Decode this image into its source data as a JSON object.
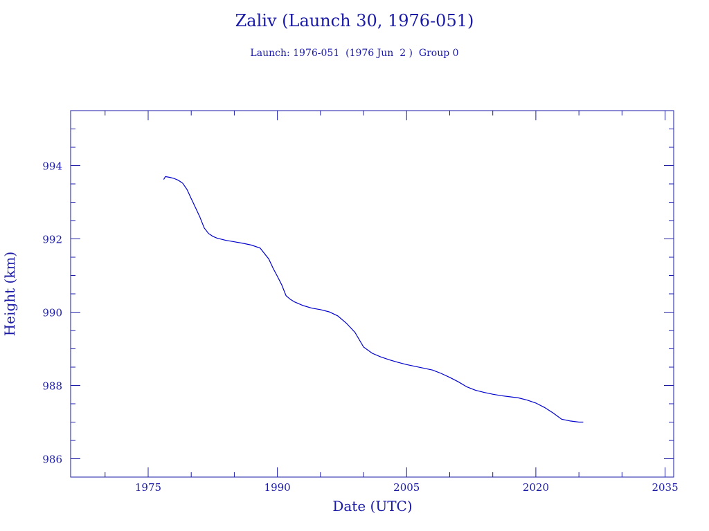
{
  "title": "Zaliv (Launch 30, 1976-051)",
  "subtitle": "Launch: 1976-051  (1976 Jun  2 )  Group 0",
  "colors": {
    "ink": "#1a1aa6",
    "line": "#0000cc",
    "background": "#ffffff"
  },
  "chart_data": {
    "type": "line",
    "xlabel": "Date (UTC)",
    "ylabel": "Height (km)",
    "xlim": [
      1966,
      2036
    ],
    "ylim": [
      985.5,
      995.5
    ],
    "x_ticks": [
      1975,
      1990,
      2005,
      2020,
      2035
    ],
    "y_ticks": [
      986,
      988,
      990,
      992,
      994
    ],
    "grid": false,
    "series": [
      {
        "x": [
          1976.8,
          1977.0,
          1977.5,
          1978.0,
          1978.5,
          1979.0,
          1979.5,
          1980.0,
          1980.5,
          1981.0,
          1981.5,
          1982.0,
          1982.5,
          1983.0,
          1984.0,
          1985.0,
          1986.0,
          1987.0,
          1988.0,
          1989.0,
          1989.5,
          1990.0,
          1990.5,
          1991.0,
          1991.5,
          1992.0,
          1993.0,
          1994.0,
          1995.0,
          1996.0,
          1997.0,
          1998.0,
          1999.0,
          2000.0,
          2001.0,
          2002.0,
          2002.5,
          2003.0,
          2004.0,
          2005.0,
          2006.0,
          2007.0,
          2008.0,
          2009.0,
          2010.0,
          2011.0,
          2012.0,
          2013.0,
          2014.0,
          2015.0,
          2016.0,
          2017.0,
          2018.0,
          2019.0,
          2020.0,
          2021.0,
          2022.0,
          2023.0,
          2024.0,
          2025.0,
          2025.5
        ],
        "y": [
          993.62,
          993.7,
          993.68,
          993.65,
          993.6,
          993.52,
          993.35,
          993.1,
          992.85,
          992.6,
          992.3,
          992.15,
          992.07,
          992.02,
          991.96,
          991.92,
          991.88,
          991.83,
          991.75,
          991.45,
          991.2,
          990.98,
          990.75,
          990.45,
          990.35,
          990.28,
          990.18,
          990.11,
          990.07,
          990.01,
          989.9,
          989.7,
          989.45,
          989.05,
          988.88,
          988.78,
          988.74,
          988.7,
          988.63,
          988.57,
          988.52,
          988.47,
          988.42,
          988.33,
          988.22,
          988.1,
          987.96,
          987.87,
          987.81,
          987.76,
          987.72,
          987.69,
          987.66,
          987.6,
          987.52,
          987.4,
          987.25,
          987.08,
          987.03,
          987.0,
          987.0
        ]
      }
    ]
  }
}
